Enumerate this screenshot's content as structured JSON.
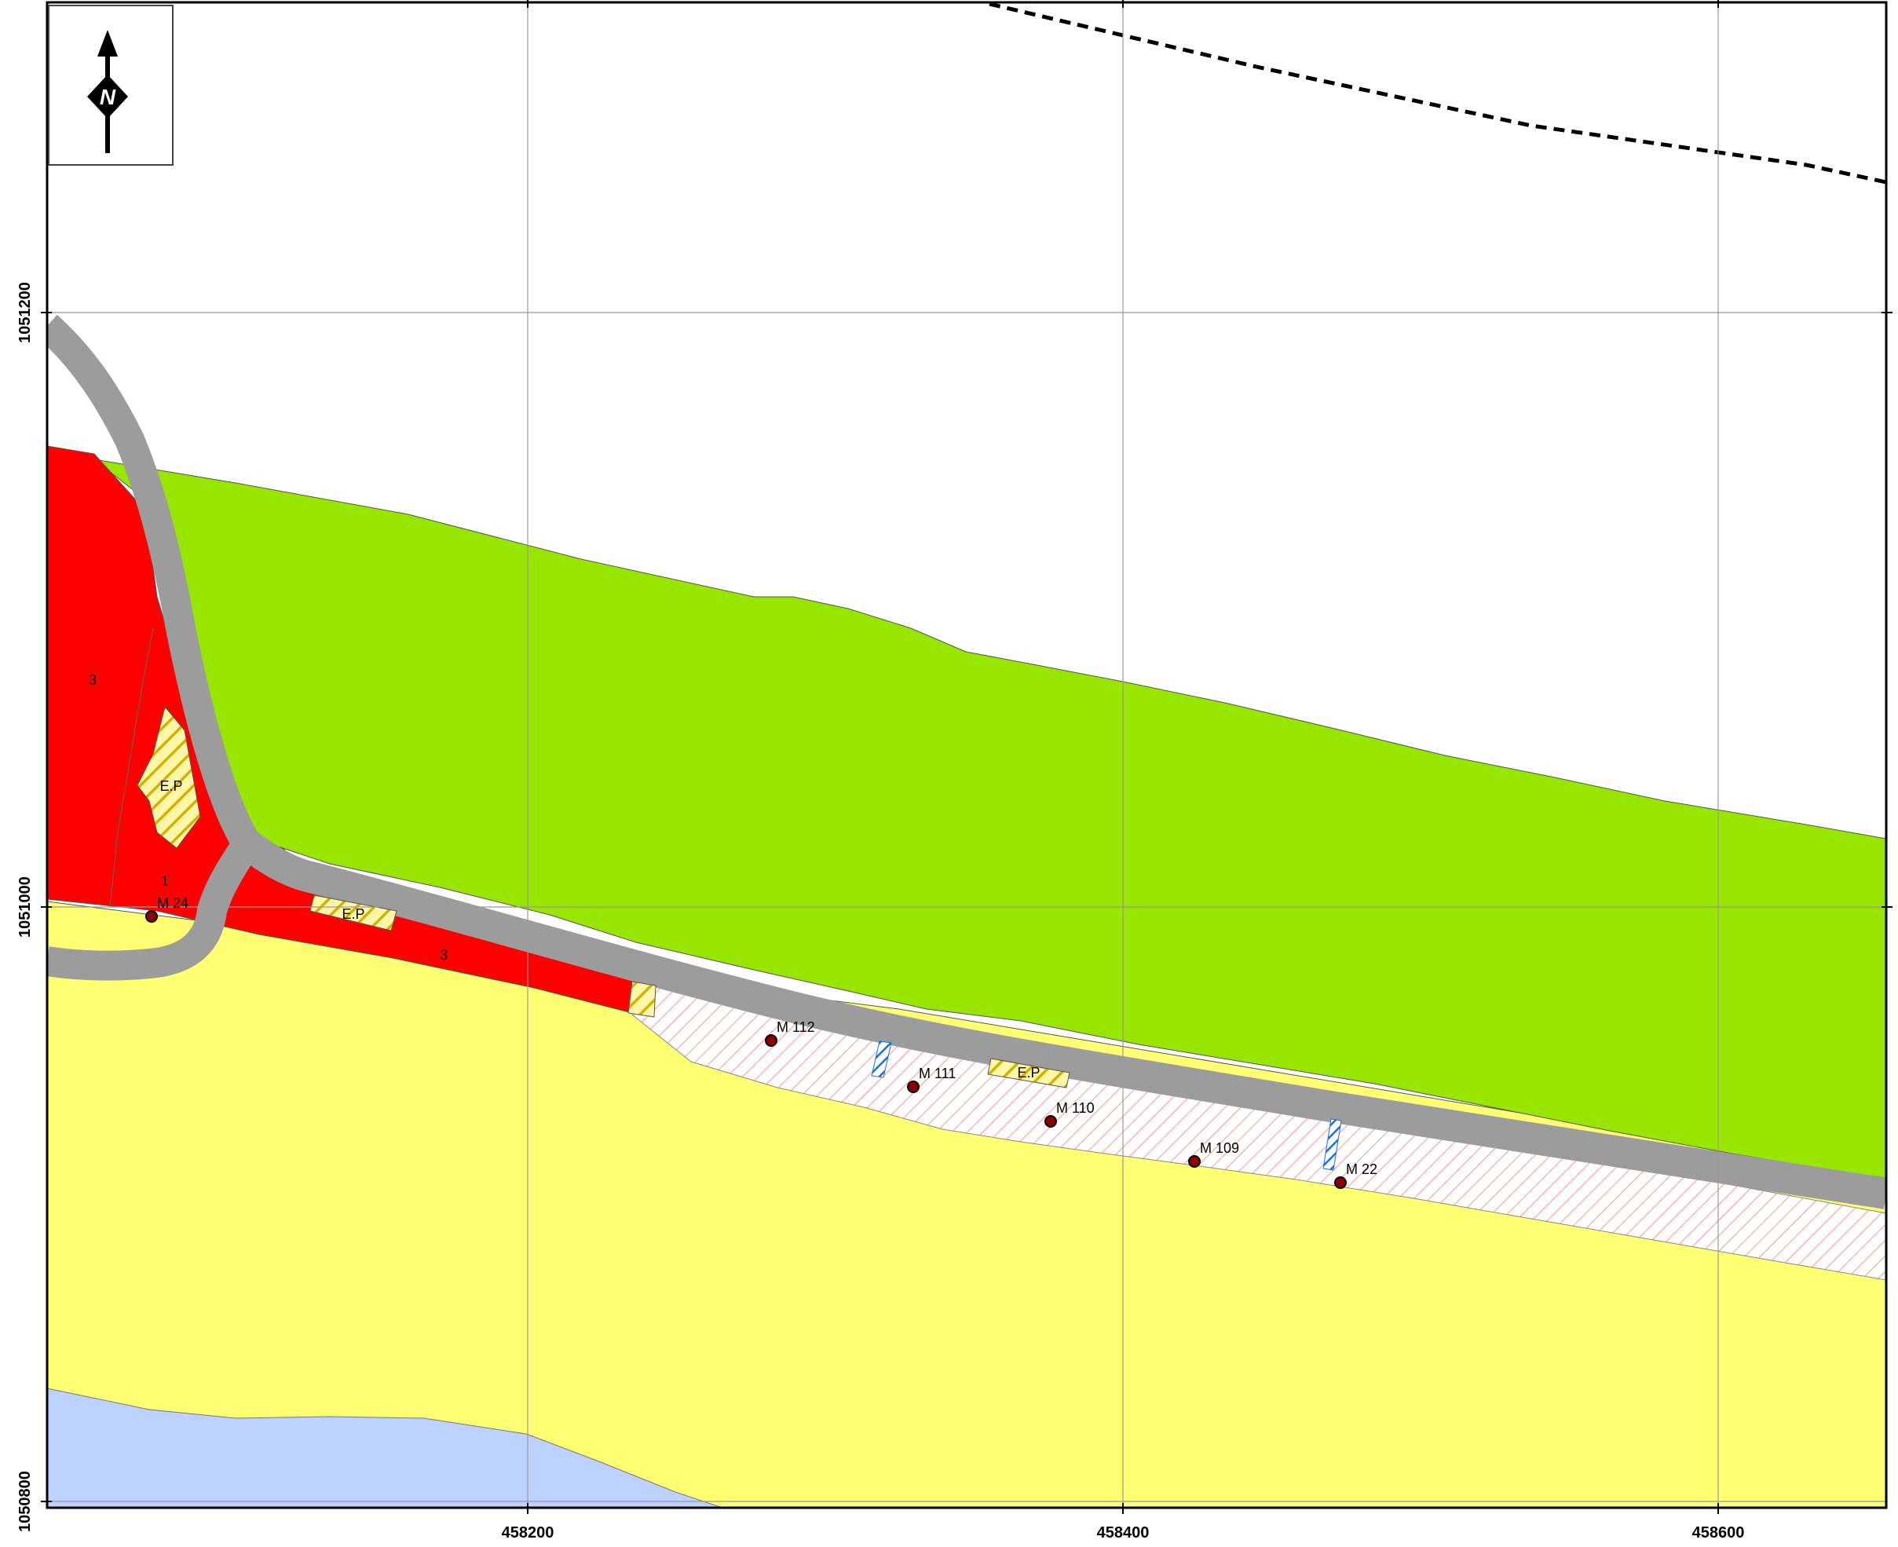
{
  "map": {
    "north_arrow_label": "N",
    "coords_x": [
      "458200",
      "458400",
      "458600"
    ],
    "coords_y": [
      "1051200",
      "1051000",
      "1050800"
    ],
    "zone_labels": [
      "3",
      "1",
      "3"
    ],
    "ep_labels": [
      "E.P",
      "E.P",
      "E.P"
    ],
    "markers": [
      "M 24",
      "M 112",
      "M 111",
      "M 110",
      "M 109",
      "M 22"
    ],
    "colors": {
      "green_zone": "#98e600",
      "yellow_zone": "#ffff73",
      "red_zone": "#ff0000",
      "road": "#9c9c9c",
      "water": "#bed2ff",
      "hatch_red": "#ff7878",
      "hatch_yellow": "#d4b000",
      "hatch_blue": "#1a6fe0",
      "marker": "#8b0000"
    }
  }
}
